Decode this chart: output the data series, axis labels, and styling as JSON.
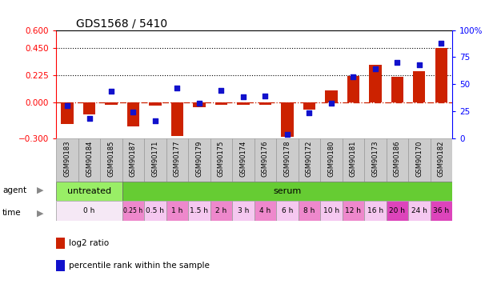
{
  "title": "GDS1568 / 5410",
  "samples": [
    "GSM90183",
    "GSM90184",
    "GSM90185",
    "GSM90187",
    "GSM90171",
    "GSM90177",
    "GSM90179",
    "GSM90175",
    "GSM90174",
    "GSM90176",
    "GSM90178",
    "GSM90172",
    "GSM90180",
    "GSM90181",
    "GSM90173",
    "GSM90186",
    "GSM90170",
    "GSM90182"
  ],
  "log2_ratio": [
    -0.18,
    -0.1,
    -0.02,
    -0.2,
    -0.03,
    -0.28,
    -0.04,
    -0.02,
    -0.02,
    -0.02,
    -0.29,
    -0.06,
    0.1,
    0.22,
    0.31,
    0.21,
    0.26,
    0.45
  ],
  "percentile_rank": [
    30,
    18,
    43,
    24,
    16,
    46,
    32,
    44,
    38,
    39,
    3,
    23,
    32,
    57,
    64,
    70,
    68,
    88
  ],
  "bar_color": "#cc2200",
  "dot_color": "#1111cc",
  "left_ylim": [
    -0.3,
    0.6
  ],
  "right_ylim": [
    0,
    100
  ],
  "left_yticks": [
    -0.3,
    0.0,
    0.225,
    0.45,
    0.6
  ],
  "right_yticks": [
    0,
    25,
    50,
    75,
    100
  ],
  "hlines": [
    0.45,
    0.225
  ],
  "agent_groups": [
    {
      "label": "untreated",
      "start": 0,
      "end": 3,
      "color": "#99ee66"
    },
    {
      "label": "serum",
      "start": 3,
      "end": 18,
      "color": "#66cc33"
    }
  ],
  "time_groups": [
    {
      "label": "0 h",
      "start": 0,
      "end": 3,
      "color": "#f5e8f5"
    },
    {
      "label": "0.25 h",
      "start": 3,
      "end": 4,
      "color": "#ee88cc"
    },
    {
      "label": "0.5 h",
      "start": 4,
      "end": 5,
      "color": "#f5c8f0"
    },
    {
      "label": "1 h",
      "start": 5,
      "end": 6,
      "color": "#ee88cc"
    },
    {
      "label": "1.5 h",
      "start": 6,
      "end": 7,
      "color": "#f5c8f0"
    },
    {
      "label": "2 h",
      "start": 7,
      "end": 8,
      "color": "#ee88cc"
    },
    {
      "label": "3 h",
      "start": 8,
      "end": 9,
      "color": "#f5c8f0"
    },
    {
      "label": "4 h",
      "start": 9,
      "end": 10,
      "color": "#ee88cc"
    },
    {
      "label": "6 h",
      "start": 10,
      "end": 11,
      "color": "#f5c8f0"
    },
    {
      "label": "8 h",
      "start": 11,
      "end": 12,
      "color": "#ee88cc"
    },
    {
      "label": "10 h",
      "start": 12,
      "end": 13,
      "color": "#f5c8f0"
    },
    {
      "label": "12 h",
      "start": 13,
      "end": 14,
      "color": "#ee88cc"
    },
    {
      "label": "16 h",
      "start": 14,
      "end": 15,
      "color": "#f5c8f0"
    },
    {
      "label": "20 h",
      "start": 15,
      "end": 16,
      "color": "#dd44bb"
    },
    {
      "label": "24 h",
      "start": 16,
      "end": 17,
      "color": "#f5c8f0"
    },
    {
      "label": "36 h",
      "start": 17,
      "end": 18,
      "color": "#dd44bb"
    }
  ],
  "legend_items": [
    {
      "label": "log2 ratio",
      "color": "#cc2200"
    },
    {
      "label": "percentile rank within the sample",
      "color": "#1111cc"
    }
  ],
  "bg_color": "#ffffff",
  "zero_line_color": "#cc2200",
  "sample_bg_color": "#cccccc",
  "title_fontsize": 10,
  "tick_fontsize": 7.5,
  "label_fontsize": 8
}
